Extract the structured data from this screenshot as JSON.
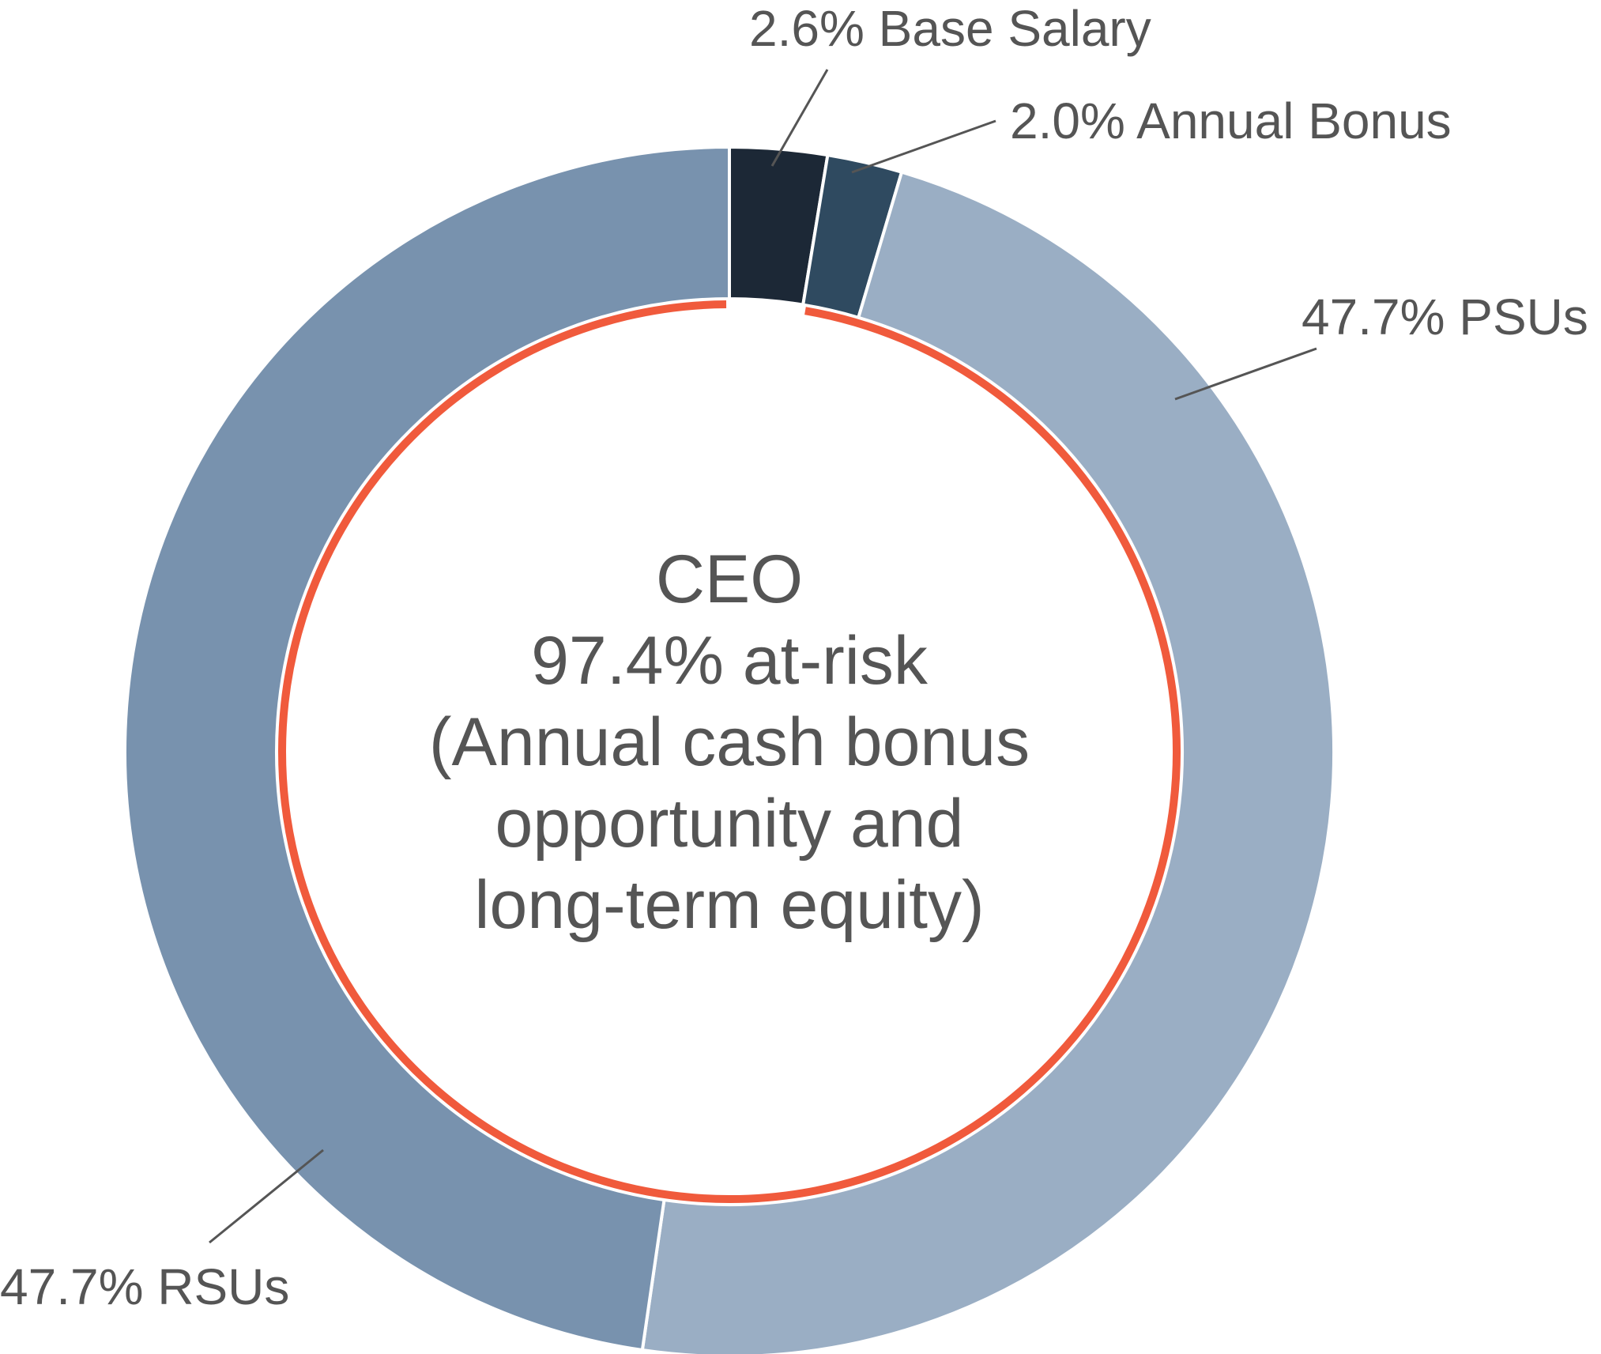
{
  "chart_data": {
    "type": "pie",
    "variant": "donut",
    "categories": [
      "Base Salary",
      "Annual Bonus",
      "PSUs",
      "RSUs"
    ],
    "values": [
      2.6,
      2.0,
      47.7,
      47.7
    ],
    "unit": "%",
    "labels": [
      "2.6% Base Salary",
      "2.0% Annual Bonus",
      "47.7% PSUs",
      "47.7% RSUs"
    ],
    "colors": [
      "#1c2836",
      "#2f4a60",
      "#9aaec4",
      "#7892ae"
    ],
    "legend": "none",
    "center_text": [
      "CEO",
      "97.4% at-risk",
      "(Annual cash bonus",
      "opportunity and",
      "long-term equity)"
    ],
    "at_risk_arc": {
      "from_category": "Annual Bonus",
      "to_category": "RSUs",
      "value": 97.4,
      "color": "#f05a3c"
    }
  }
}
